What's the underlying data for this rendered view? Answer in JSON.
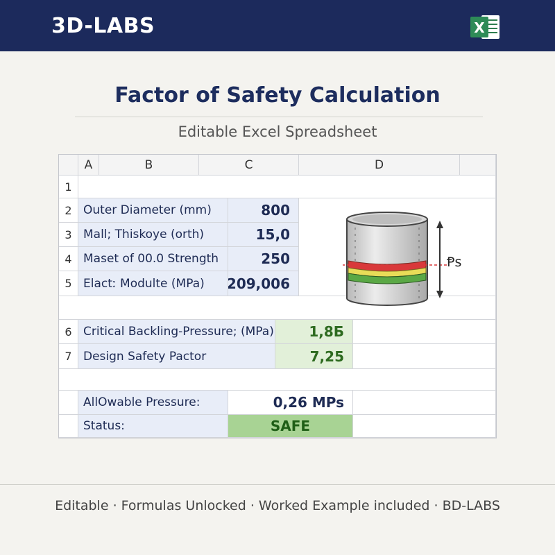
{
  "header": {
    "brand": "3D-LABS",
    "app_icon": "excel-icon",
    "app_icon_letter": "X"
  },
  "title": "Factor of Safety Calculation",
  "subtitle": "Editable Excel Spreadsheet",
  "sheet": {
    "columns": [
      "A",
      "B",
      "C",
      "D"
    ],
    "row_numbers": [
      "1",
      "2",
      "3",
      "4",
      "5",
      "6",
      "7"
    ],
    "rows": [
      {
        "label": "Outer Diameter (mm)",
        "value": "800"
      },
      {
        "label": "Mall; Thiskoye (orth)",
        "value": "15,0"
      },
      {
        "label": "Maset of 00.0 Strength",
        "value": "250"
      },
      {
        "label": "Elactː Modulte (MPa)",
        "value": "209,006"
      },
      {
        "label": "Critical Backling-Pressure; (MPa)",
        "value": "1,8Б"
      },
      {
        "label": "Design Safety Pactor",
        "value": "7,25"
      },
      {
        "label": "AllOwable Pressure:",
        "value": "0,26 MPs"
      },
      {
        "label": "Status:",
        "value": "SAFE"
      }
    ],
    "diagram_label": "Ᵽs"
  },
  "colors": {
    "header_bg": "#1c2a5c",
    "label_bg": "#e8edf8",
    "result_bg": "#e2f0d9",
    "safe_bg": "#a8d394",
    "text_navy": "#1e2b54"
  },
  "footer": "Editable · Formulas Unlocked · Worked Example included · BD-LABS"
}
